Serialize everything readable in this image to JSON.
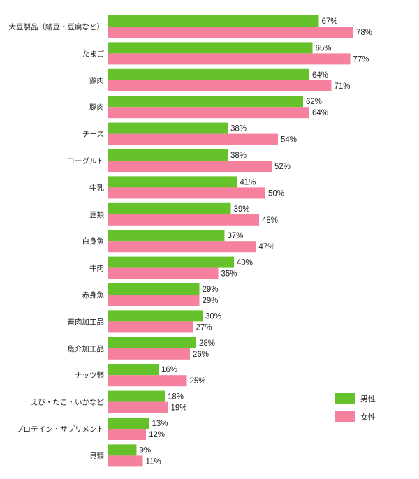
{
  "chart_data": {
    "type": "bar",
    "orientation": "horizontal",
    "categories": [
      "大豆製品（納豆・豆腐など）",
      "たまご",
      "鶏肉",
      "豚肉",
      "チーズ",
      "ヨーグルト",
      "牛乳",
      "豆類",
      "白身魚",
      "牛肉",
      "赤身魚",
      "畜肉加工品",
      "魚介加工品",
      "ナッツ類",
      "えび・たこ・いかなど",
      "プロテイン・サプリメント",
      "貝類"
    ],
    "series": [
      {
        "name": "男性",
        "color": "#66c22a",
        "values": [
          67,
          65,
          64,
          62,
          38,
          38,
          41,
          39,
          37,
          40,
          29,
          30,
          28,
          16,
          18,
          13,
          9
        ]
      },
      {
        "name": "女性",
        "color": "#f5819f",
        "values": [
          78,
          77,
          71,
          64,
          54,
          52,
          50,
          48,
          47,
          35,
          29,
          27,
          26,
          25,
          19,
          12,
          11
        ]
      }
    ],
    "value_suffix": "%",
    "xlim": [
      0,
      100
    ],
    "grid": false,
    "legend_position": "bottom-right"
  }
}
